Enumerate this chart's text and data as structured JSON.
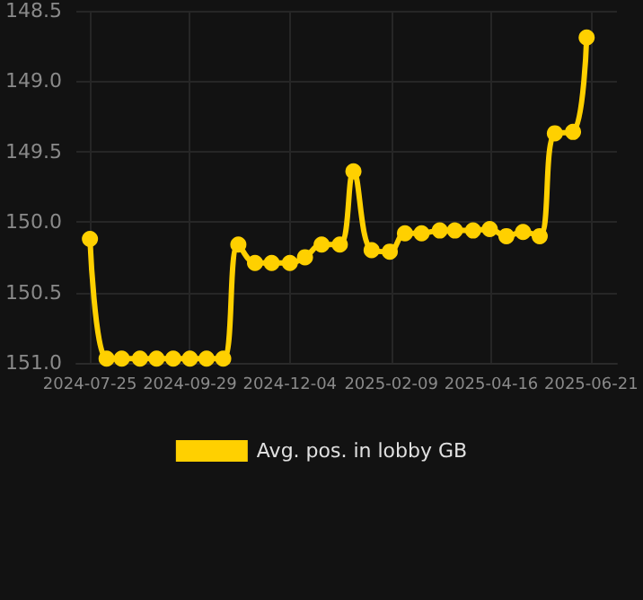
{
  "chart_data": {
    "type": "line",
    "x": [
      "2024-07-25",
      "2024-08-05",
      "2024-08-15",
      "2024-08-27",
      "2024-09-07",
      "2024-09-18",
      "2024-09-29",
      "2024-10-10",
      "2024-10-21",
      "2024-10-31",
      "2024-11-11",
      "2024-11-22",
      "2024-12-04",
      "2024-12-14",
      "2024-12-25",
      "2025-01-06",
      "2025-01-15",
      "2025-01-27",
      "2025-02-08",
      "2025-02-18",
      "2025-03-01",
      "2025-03-13",
      "2025-03-23",
      "2025-04-04",
      "2025-04-15",
      "2025-04-26",
      "2025-05-07",
      "2025-05-18",
      "2025-05-28",
      "2025-06-09",
      "2025-06-18"
    ],
    "series": [
      {
        "name": "Avg. pos. in lobby GB",
        "color": "#ffd000",
        "values": [
          150.12,
          150.97,
          150.97,
          150.97,
          150.97,
          150.97,
          150.97,
          150.97,
          150.97,
          150.16,
          150.29,
          150.29,
          150.29,
          150.25,
          150.16,
          150.16,
          149.64,
          150.2,
          150.21,
          150.08,
          150.08,
          150.06,
          150.06,
          150.06,
          150.05,
          150.1,
          150.07,
          150.1,
          149.37,
          149.36,
          148.69
        ]
      }
    ],
    "xlim": [
      "2024-07-16",
      "2025-07-08"
    ],
    "xticks": [
      "2024-07-25",
      "2024-09-29",
      "2024-12-04",
      "2025-02-09",
      "2025-04-16",
      "2025-06-21"
    ],
    "ylim": [
      151.0,
      148.5
    ],
    "yticks": [
      {
        "value": 148.5,
        "label": "148.5"
      },
      {
        "value": 149,
        "label": "149.0"
      },
      {
        "value": 149.5,
        "label": "149.5"
      },
      {
        "value": 150,
        "label": "150.0"
      },
      {
        "value": 150.5,
        "label": "150.5"
      },
      {
        "value": 151,
        "label": "151.0"
      }
    ],
    "grid": true,
    "legend": "bottom",
    "marker": "circle",
    "line_style": "solid"
  }
}
